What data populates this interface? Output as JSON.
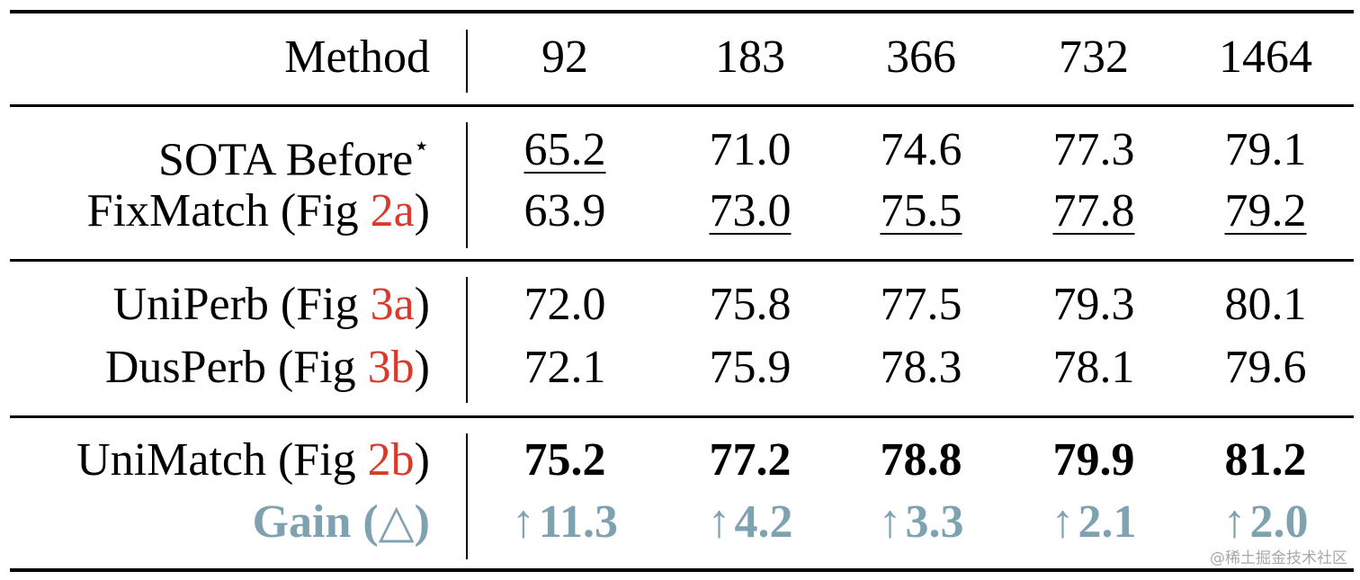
{
  "header": {
    "method": "Method",
    "columns": [
      "92",
      "183",
      "366",
      "732",
      "1464"
    ]
  },
  "rows": [
    {
      "method": "SOTA Before",
      "method_suffix": "⋆",
      "figref": "",
      "method_close": "",
      "values": [
        "65.2",
        "71.0",
        "74.6",
        "77.3",
        "79.1"
      ],
      "underline": [
        true,
        false,
        false,
        false,
        false
      ]
    },
    {
      "method": "FixMatch (Fig ",
      "figref": "2a",
      "method_close": ")",
      "values": [
        "63.9",
        "73.0",
        "75.5",
        "77.8",
        "79.2"
      ],
      "underline": [
        false,
        true,
        true,
        true,
        true
      ]
    },
    {
      "method": "UniPerb (Fig ",
      "figref": "3a",
      "method_close": ")",
      "values": [
        "72.0",
        "75.8",
        "77.5",
        "79.3",
        "80.1"
      ]
    },
    {
      "method": "DusPerb (Fig ",
      "figref": "3b",
      "method_close": ")",
      "values": [
        "72.1",
        "75.9",
        "78.3",
        "78.1",
        "79.6"
      ]
    },
    {
      "method": "UniMatch (Fig ",
      "figref": "2b",
      "method_close": ")",
      "values": [
        "75.2",
        "77.2",
        "78.8",
        "79.9",
        "81.2"
      ]
    },
    {
      "method": "Gain (△)",
      "arrow": "↑",
      "values": [
        "11.3",
        "4.2",
        "3.3",
        "2.1",
        "2.0"
      ]
    }
  ],
  "colors": {
    "figref": "#d93a2b",
    "gain": "#7fa2b1",
    "rule": "#000000"
  },
  "watermark": "@稀土掘金技术社区"
}
